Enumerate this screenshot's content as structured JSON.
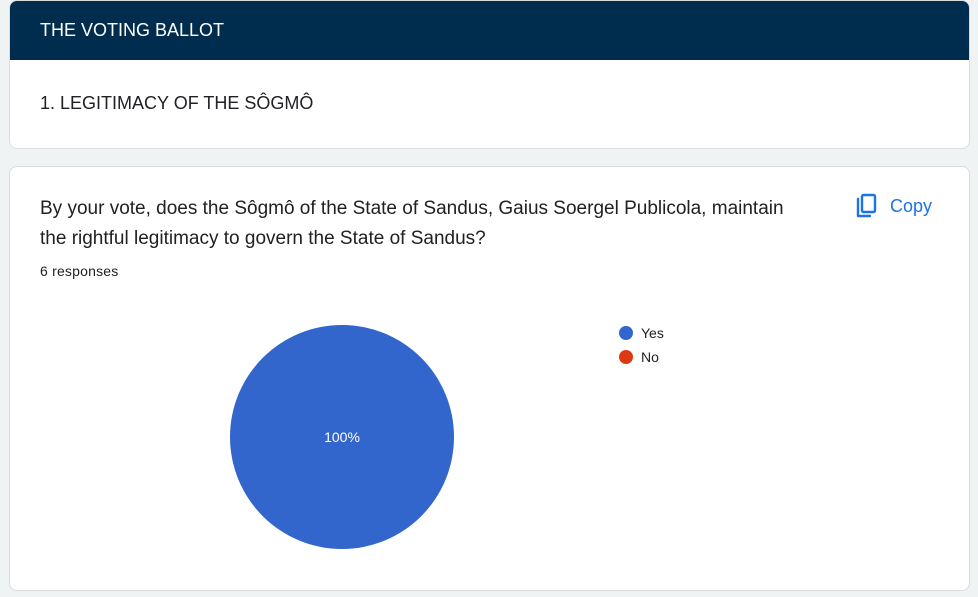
{
  "section": {
    "header": "THE VOTING BALLOT",
    "title": "1. LEGITIMACY OF THE SÔGMÔ"
  },
  "question": {
    "text": "By your vote, does the Sôgmô of the State of Sandus, Gaius Soergel Publicola, maintain the rightful legitimacy to govern the State of Sandus?",
    "responses": "6 responses",
    "copy_label": "Copy",
    "copy_icon": "copy-icon"
  },
  "colors": {
    "header_bg": "#002c4d",
    "yes": "#3366cc",
    "no": "#dc3912",
    "accent": "#1a73e8"
  },
  "chart_data": {
    "type": "pie",
    "categories": [
      "Yes",
      "No"
    ],
    "values": [
      100,
      0
    ],
    "data_labels": [
      "100%",
      ""
    ],
    "legend_placement": "right"
  }
}
